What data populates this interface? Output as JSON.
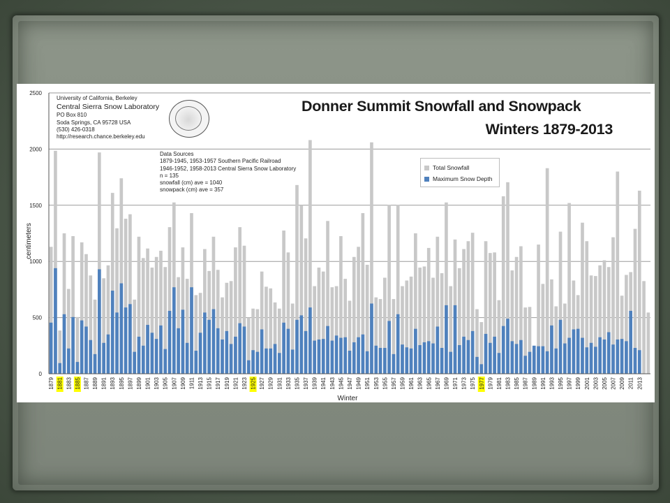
{
  "slide": {
    "background_color": "#4f5b4d",
    "paper_color": "#868e83"
  },
  "header": {
    "org_line1": "University of California, Berkeley",
    "org_line2": "Central Sierra Snow Laboratory",
    "org_line3": "PO Box 810",
    "org_line4": "Soda Springs, CA 95728 USA",
    "org_line5": "(530) 426-0318",
    "org_line6": "http://research.chance.berkeley.edu"
  },
  "notes": {
    "line1": "Data Sources",
    "line2": "1879-1945, 1953-1957 Southern Pacific Railroad",
    "line3": "1946-1952, 1958-2013 Central Sierra Snow Laboratory",
    "line4": "n = 135",
    "line5": "snowfall (cm) ave = 1040",
    "line6": "snowpack (cm) ave = 357"
  },
  "chart_data": {
    "type": "bar",
    "title": "Donner Summit Snowfall and Snowpack",
    "subtitle": "Winters 1879-2013",
    "xlabel": "Winter",
    "ylabel": "centimeters",
    "ylim": [
      0,
      2500
    ],
    "yticks": [
      0,
      500,
      1000,
      1500,
      2000,
      2500
    ],
    "grid": true,
    "legend_position": "upper-right-center",
    "highlighted_years": [
      1881,
      1885,
      1925,
      1977
    ],
    "highlight_color": "#ffff00",
    "xtick_labels": [
      "1879",
      "1881",
      "1883",
      "1885",
      "1887",
      "1889",
      "1891",
      "1893",
      "1895",
      "1897",
      "1899",
      "1901",
      "1903",
      "1905",
      "1907",
      "1909",
      "1911",
      "1913",
      "1915",
      "1917",
      "1919",
      "1921",
      "1923",
      "1925",
      "1927",
      "1929",
      "1931",
      "1933",
      "1935",
      "1937",
      "1939",
      "1941",
      "1943",
      "1945",
      "1947",
      "1949",
      "1951",
      "1953",
      "1955",
      "1957",
      "1959",
      "1961",
      "1963",
      "1965",
      "1967",
      "1969",
      "1971",
      "1973",
      "1975",
      "1977",
      "1979",
      "1981",
      "1983",
      "1985",
      "1987",
      "1989",
      "1991",
      "1993",
      "1995",
      "1997",
      "1999",
      "2001",
      "2003",
      "2005",
      "2007",
      "2009",
      "2011",
      "2013"
    ],
    "start_year": 1879,
    "series": [
      {
        "name": "Total Snowfall",
        "color": "#c8c8c8",
        "values": [
          1130,
          1985,
          385,
          1250,
          755,
          1225,
          505,
          1170,
          1065,
          875,
          660,
          1970,
          850,
          965,
          1610,
          1295,
          1740,
          1380,
          1420,
          660,
          1220,
          1030,
          1115,
          945,
          1040,
          1095,
          950,
          1305,
          1525,
          860,
          1125,
          845,
          1430,
          700,
          720,
          1110,
          915,
          1220,
          925,
          680,
          810,
          825,
          1125,
          1305,
          1140,
          500,
          580,
          575,
          910,
          775,
          760,
          635,
          580,
          1275,
          1080,
          625,
          1680,
          1500,
          1205,
          2080,
          780,
          945,
          910,
          1360,
          770,
          780,
          1225,
          845,
          650,
          1040,
          1130,
          1430,
          970,
          2060,
          680,
          665,
          855,
          1505,
          665,
          1505,
          780,
          830,
          865,
          1250,
          945,
          955,
          1120,
          855,
          1220,
          895,
          1525,
          780,
          1195,
          940,
          1110,
          1180,
          1255,
          575,
          460,
          1180,
          1075,
          1080,
          655,
          1580,
          1705,
          920,
          1040,
          1135,
          590,
          595,
          190,
          1150,
          800,
          1830,
          840,
          600,
          1265,
          625,
          1520,
          830,
          700,
          1345,
          1180,
          875,
          870,
          965,
          1010,
          950,
          1215,
          1800,
          695,
          880,
          905,
          1290,
          1630,
          825,
          545
        ],
        "values_note": "approximate readings"
      },
      {
        "name": "Maximum Snow Depth",
        "color": "#4f81bd",
        "values": [
          455,
          940,
          95,
          530,
          225,
          505,
          105,
          475,
          420,
          300,
          175,
          930,
          275,
          350,
          740,
          545,
          805,
          590,
          620,
          195,
          330,
          250,
          435,
          365,
          310,
          430,
          220,
          560,
          770,
          405,
          570,
          275,
          770,
          205,
          365,
          545,
          480,
          575,
          405,
          305,
          380,
          265,
          330,
          450,
          420,
          120,
          210,
          195,
          395,
          225,
          225,
          265,
          185,
          455,
          400,
          215,
          480,
          520,
          380,
          590,
          295,
          305,
          310,
          425,
          295,
          340,
          320,
          325,
          205,
          280,
          325,
          350,
          200,
          625,
          250,
          230,
          230,
          470,
          175,
          530,
          260,
          235,
          225,
          400,
          255,
          280,
          290,
          270,
          420,
          230,
          610,
          195,
          610,
          255,
          330,
          300,
          380,
          150,
          85,
          355,
          275,
          330,
          185,
          425,
          490,
          290,
          265,
          300,
          160,
          195,
          250,
          245,
          245,
          200,
          430,
          225,
          480,
          270,
          320,
          395,
          400,
          320,
          235,
          275,
          240,
          325,
          305,
          370,
          260,
          305,
          310,
          290,
          560,
          230,
          210
        ]
      }
    ]
  },
  "legend": {
    "total_label": "Total Snowfall",
    "depth_label": "Maximum Snow Depth",
    "total_color": "#c8c8c8",
    "depth_color": "#4f81bd"
  }
}
